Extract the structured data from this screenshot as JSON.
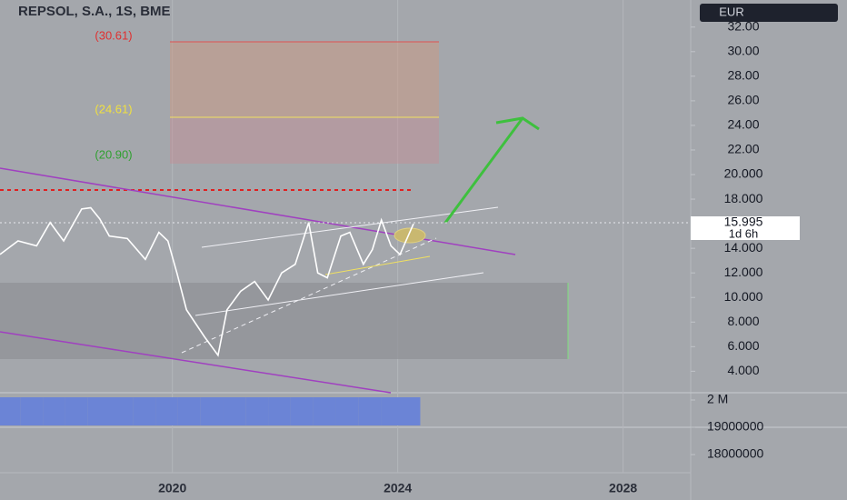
{
  "chart_data": [
    {
      "type": "line",
      "title": "REPSOL, S.A., 1S, BME",
      "currency": "EUR",
      "x": [
        2016.94,
        2017.26,
        2017.59,
        2017.83,
        2018.07,
        2018.39,
        2018.55,
        2018.71,
        2018.88,
        2019.2,
        2019.52,
        2019.76,
        2019.92,
        2020.08,
        2020.25,
        2020.41,
        2020.57,
        2020.81,
        2020.97,
        2021.21,
        2021.46,
        2021.7,
        2021.94,
        2022.18,
        2022.42,
        2022.58,
        2022.75,
        2022.99,
        2023.15,
        2023.39,
        2023.55,
        2023.71,
        2023.88,
        2024.04,
        2024.28
      ],
      "series": [
        {
          "name": "REPSOL",
          "color": "#ffffff",
          "values": [
            13.5,
            14.6,
            14.2,
            16.1,
            14.6,
            17.2,
            17.3,
            16.4,
            15.0,
            14.8,
            13.1,
            15.3,
            14.6,
            12.0,
            9.0,
            7.9,
            6.8,
            5.3,
            9.0,
            10.5,
            11.3,
            9.8,
            12.0,
            12.7,
            16.1,
            12.0,
            11.6,
            15.0,
            15.3,
            12.7,
            13.9,
            16.3,
            14.2,
            13.5,
            15.995
          ]
        }
      ],
      "last_price": {
        "value": 15.995,
        "label": "15.995"
      },
      "countdown": "1d 6h",
      "annotations": [
        "(30.61)",
        "(24.61)",
        "(20.90)"
      ],
      "xlim": [
        2016.94,
        2029.2
      ],
      "xticks": [
        2020,
        2024,
        2028
      ],
      "ylim": [
        2.4,
        34.2
      ],
      "yticks": [
        {
          "value": 32,
          "label": "32.00"
        },
        {
          "value": 30,
          "label": "30.00"
        },
        {
          "value": 28,
          "label": "28.00"
        },
        {
          "value": 26,
          "label": "26.00"
        },
        {
          "value": 24,
          "label": "24.00"
        },
        {
          "value": 22,
          "label": "22.00"
        },
        {
          "value": 20,
          "label": "20.000"
        },
        {
          "value": 18,
          "label": "18.000"
        },
        {
          "value": 14,
          "label": "14.000"
        },
        {
          "value": 12,
          "label": "12.000"
        },
        {
          "value": 10,
          "label": "10.000"
        },
        {
          "value": 8,
          "label": "8.000"
        },
        {
          "value": 6,
          "label": "6.000"
        },
        {
          "value": 4,
          "label": "4.000"
        }
      ],
      "grid": true
    },
    {
      "type": "bar",
      "x": [
        2017.1,
        2017.5,
        2017.9,
        2018.3,
        2018.7,
        2019.1,
        2019.5,
        2019.9,
        2020.3,
        2020.7,
        2021.1,
        2021.5,
        2021.9,
        2022.3,
        2022.7,
        2023.1,
        2023.5,
        2023.9,
        2024.2
      ],
      "values": [
        20100000,
        20100000,
        20100000,
        20100000,
        20100000,
        20100000,
        20100000,
        20100000,
        20100000,
        20100000,
        20100000,
        20100000,
        20100000,
        20100000,
        20100000,
        20100000,
        20100000,
        20100000,
        20100000
      ],
      "color": "#6b84d6",
      "ylim": [
        17000000,
        20200000
      ],
      "yticks": [
        {
          "value": 20000000,
          "label": "2 M"
        },
        19000000,
        18000000
      ]
    }
  ]
}
